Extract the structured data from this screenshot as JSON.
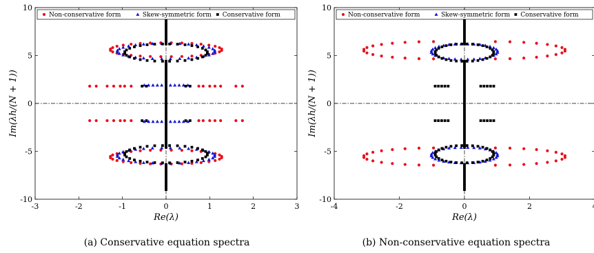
{
  "colors": {
    "non_conservative": "#e8101c",
    "skew_symmetric": "#1414d2",
    "conservative": "#000000"
  },
  "legend": [
    {
      "label": "Non-conservative form",
      "marker": "circle",
      "color": "#e8101c"
    },
    {
      "label": "Skew-symmetric form",
      "marker": "triangle",
      "color": "#1414d2"
    },
    {
      "label": "Conservative form",
      "marker": "square",
      "color": "#000000"
    }
  ],
  "chart_data": [
    {
      "type": "scatter",
      "caption": "(a) Conservative equation spectra",
      "xlabel": "Re(λ)",
      "ylabel": "Im(λh/(N + 1))",
      "xlim": [
        -3,
        3
      ],
      "ylim": [
        -10,
        10
      ],
      "xticks": [
        "-3",
        "-2",
        "-1",
        "0",
        "1",
        "2",
        "3"
      ],
      "yticks": [
        "-10",
        "-5",
        "0",
        "5",
        "10"
      ],
      "legend_position": "top",
      "series": [
        {
          "name": "Non-conservative form",
          "marker": "circle",
          "groups": [
            {
              "kind": "arc",
              "x_min": 0.12,
              "x_max": 1.28,
              "y_center": 5.6,
              "half_height": 0.72
            },
            {
              "kind": "row",
              "y": 1.8,
              "x": [
                -1.75,
                -1.6,
                -1.35,
                -1.2,
                -1.05,
                -0.95,
                -0.8,
                0.75,
                0.85,
                1.0,
                1.12,
                1.25,
                1.6,
                1.75
              ]
            },
            {
              "kind": "row",
              "y": -1.8,
              "x": [
                -1.75,
                -1.6,
                -1.35,
                -1.2,
                -1.05,
                -0.95,
                -0.8,
                0.75,
                0.85,
                1.0,
                1.12,
                1.25,
                1.6,
                1.75
              ]
            }
          ]
        },
        {
          "name": "Skew-symmetric form",
          "marker": "triangle",
          "groups": [
            {
              "kind": "arc",
              "x_min": 0.1,
              "x_max": 1.12,
              "y_center": 5.45,
              "half_height": 0.8
            },
            {
              "kind": "row",
              "y": 1.9,
              "x": [
                -0.5,
                -0.4,
                -0.3,
                -0.2,
                -0.1,
                0.1,
                0.2,
                0.3,
                0.4,
                0.5
              ]
            },
            {
              "kind": "row",
              "y": -1.9,
              "x": [
                -0.5,
                -0.4,
                -0.3,
                -0.2,
                -0.1,
                0.1,
                0.2,
                0.3,
                0.4,
                0.5
              ]
            }
          ]
        },
        {
          "name": "Conservative form",
          "marker": "square",
          "groups": [
            {
              "kind": "arc",
              "x_min": 0.08,
              "x_max": 0.95,
              "y_center": 5.3,
              "half_height": 0.9
            },
            {
              "kind": "row",
              "y": 1.8,
              "x": [
                -0.55,
                -0.45,
                0.45,
                0.55
              ]
            },
            {
              "kind": "row",
              "y": -1.8,
              "x": [
                -0.55,
                -0.45,
                0.45,
                0.55
              ]
            },
            {
              "kind": "vline",
              "x": 0,
              "y_ranges": [
                [
                  -9,
                  -6.2
                ],
                [
                  -4.6,
                  4.6
                ],
                [
                  6.2,
                  9
                ]
              ]
            }
          ]
        }
      ]
    },
    {
      "type": "scatter",
      "caption": "(b) Non-conservative equation spectra",
      "xlabel": "Re(λ)",
      "ylabel": "Im(λh/(N + 1))",
      "xlim": [
        -4,
        4
      ],
      "ylim": [
        -10,
        10
      ],
      "xticks": [
        "-4",
        "-2",
        "0",
        "2",
        "4"
      ],
      "yticks": [
        "-10",
        "-5",
        "0",
        "5",
        "10"
      ],
      "legend_position": "top",
      "series": [
        {
          "name": "Non-conservative form",
          "marker": "circle",
          "groups": [
            {
              "kind": "arc",
              "x_min": 0.95,
              "x_max": 3.1,
              "y_center": 5.55,
              "half_height": 0.9
            }
          ]
        },
        {
          "name": "Skew-symmetric form",
          "marker": "triangle",
          "groups": [
            {
              "kind": "arc",
              "x_min": 0.1,
              "x_max": 1.02,
              "y_center": 5.4,
              "half_height": 0.8
            }
          ]
        },
        {
          "name": "Conservative form",
          "marker": "square",
          "groups": [
            {
              "kind": "arc",
              "x_min": 0.08,
              "x_max": 0.9,
              "y_center": 5.3,
              "half_height": 0.9
            },
            {
              "kind": "row",
              "y": 1.8,
              "x": [
                -0.9,
                -0.8,
                -0.7,
                -0.6,
                -0.5,
                0.5,
                0.6,
                0.7,
                0.8,
                0.9
              ]
            },
            {
              "kind": "row",
              "y": -1.8,
              "x": [
                -0.9,
                -0.8,
                -0.7,
                -0.6,
                -0.5,
                0.5,
                0.6,
                0.7,
                0.8,
                0.9
              ]
            },
            {
              "kind": "vline",
              "x": 0,
              "y_ranges": [
                [
                  -9,
                  -6.2
                ],
                [
                  -4.6,
                  4.6
                ],
                [
                  6.2,
                  9
                ]
              ]
            }
          ]
        }
      ]
    }
  ]
}
